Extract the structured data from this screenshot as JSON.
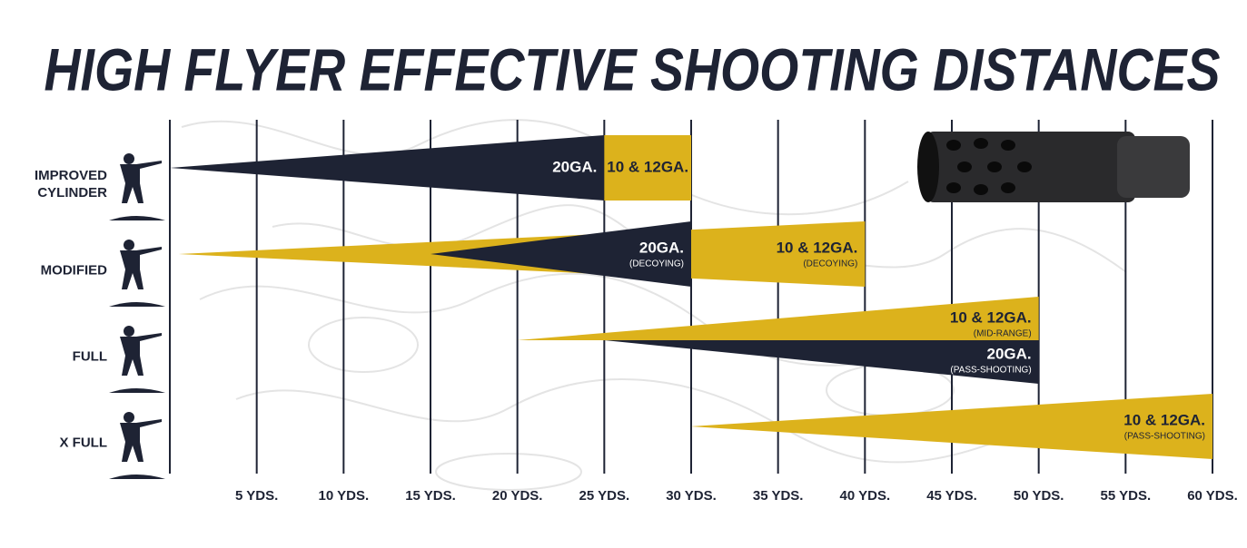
{
  "chart_data": {
    "type": "wedge",
    "title": "HIGH FLYER EFFECTIVE SHOOTING DISTANCES",
    "xlim": [
      0,
      60
    ],
    "xticks": [
      {
        "value": 5,
        "label": "5 YDS."
      },
      {
        "value": 10,
        "label": "10 YDS."
      },
      {
        "value": 15,
        "label": "15 YDS."
      },
      {
        "value": 20,
        "label": "20 YDS."
      },
      {
        "value": 25,
        "label": "25 YDS."
      },
      {
        "value": 30,
        "label": "30 YDS."
      },
      {
        "value": 35,
        "label": "35 YDS."
      },
      {
        "value": 40,
        "label": "40 YDS."
      },
      {
        "value": 45,
        "label": "45 YDS."
      },
      {
        "value": 50,
        "label": "50 YDS."
      },
      {
        "value": 55,
        "label": "55 YDS."
      },
      {
        "value": 60,
        "label": "60 YDS."
      }
    ],
    "grid": true,
    "rows": [
      {
        "name": "IMPROVED CYLINDER",
        "loads": [
          {
            "label": "20GA.",
            "start": 0,
            "end": 25,
            "color": "#1e2334",
            "text_color": "#ffffff",
            "shape": "wedge"
          },
          {
            "label": "10 & 12GA.",
            "start": 25,
            "end": 30,
            "color": "#dcb21c",
            "text_color": "#1e2334",
            "shape": "box"
          }
        ]
      },
      {
        "name": "MODIFIED",
        "loads": [
          {
            "label": "10 & 12GA.",
            "note": "(DECOYING)",
            "start": 0.5,
            "end": 40,
            "color": "#dcb21c",
            "text_color": "#1e2334",
            "shape": "wedge"
          },
          {
            "label": "20GA.",
            "note": "(DECOYING)",
            "start": 15,
            "end": 30,
            "color": "#1e2334",
            "text_color": "#ffffff",
            "shape": "wedge"
          }
        ]
      },
      {
        "name": "FULL",
        "loads": [
          {
            "label": "10 & 12GA.",
            "note": "(MID-RANGE)",
            "start": 20,
            "end": 50,
            "color": "#dcb21c",
            "text_color": "#1e2334",
            "shape": "upper"
          },
          {
            "label": "20GA.",
            "note": "(PASS-SHOOTING)",
            "start": 25,
            "end": 50,
            "color": "#1e2334",
            "text_color": "#ffffff",
            "shape": "lower"
          }
        ]
      },
      {
        "name": "X FULL",
        "loads": [
          {
            "label": "10 & 12GA.",
            "note": "(PASS-SHOOTING)",
            "start": 30,
            "end": 60,
            "color": "#dcb21c",
            "text_color": "#1e2334",
            "shape": "wedge"
          }
        ]
      }
    ]
  }
}
